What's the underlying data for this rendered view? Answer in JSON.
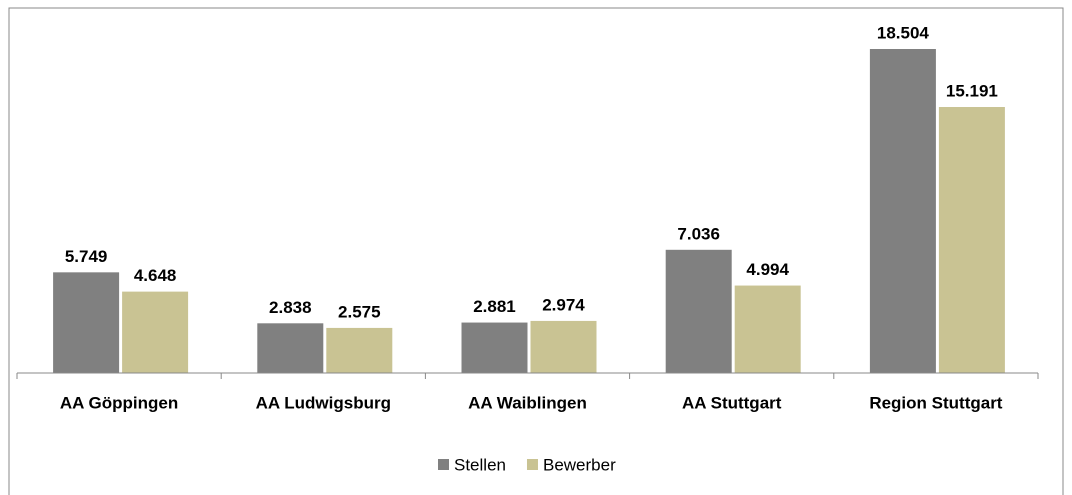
{
  "chart_data": {
    "type": "bar",
    "categories": [
      "AA Göppingen",
      "AA Ludwigsburg",
      "AA Waiblingen",
      "AA Stuttgart",
      "Region Stuttgart"
    ],
    "series": [
      {
        "name": "Stellen",
        "color": "#808080",
        "values": [
          5749,
          2838,
          2881,
          7036,
          18504
        ],
        "value_labels": [
          "5.749",
          "2.838",
          "2.881",
          "7.036",
          "18.504"
        ]
      },
      {
        "name": "Bewerber",
        "color": "#c9c393",
        "values": [
          4648,
          2575,
          2974,
          4994,
          15191
        ],
        "value_labels": [
          "4.648",
          "2.575",
          "2.974",
          "4.994",
          "15.191"
        ]
      }
    ],
    "legend": "bottom"
  }
}
